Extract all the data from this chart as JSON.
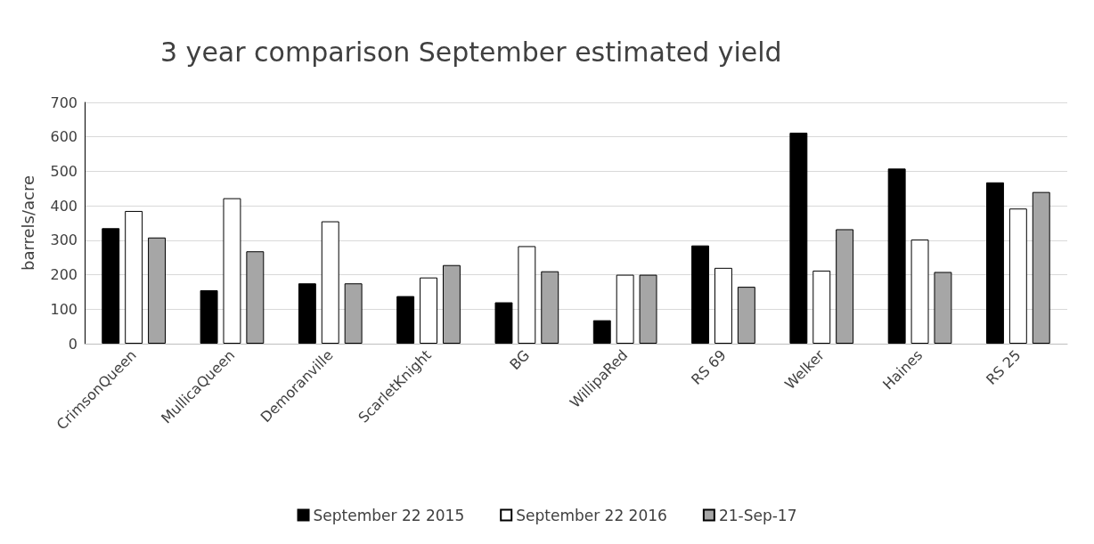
{
  "chart_data": {
    "type": "bar",
    "title": "3 year comparison September estimated yield",
    "ylabel": "barrels/acre",
    "categories": [
      "CrimsonQueen",
      "MullicaQueen",
      "Demoranville",
      "ScarletKnight",
      "BG",
      "WillipaRed",
      "RS 69",
      "Welker",
      "Haines",
      "RS 25"
    ],
    "series": [
      {
        "name": "September 22 2015",
        "color": "#000000",
        "values": [
          335,
          155,
          175,
          138,
          120,
          68,
          285,
          612,
          508,
          468
        ]
      },
      {
        "name": "September 22 2016",
        "color": "#ffffff",
        "values": [
          385,
          422,
          355,
          192,
          283,
          200,
          220,
          212,
          302,
          392
        ]
      },
      {
        "name": "21-Sep-17",
        "color": "#a6a6a6",
        "values": [
          308,
          268,
          175,
          228,
          210,
          200,
          165,
          332,
          208,
          440
        ]
      }
    ],
    "ylim": [
      0,
      700
    ],
    "yticks": [
      0,
      100,
      200,
      300,
      400,
      500,
      600,
      700
    ],
    "grid": "y",
    "legend": "bottom"
  }
}
